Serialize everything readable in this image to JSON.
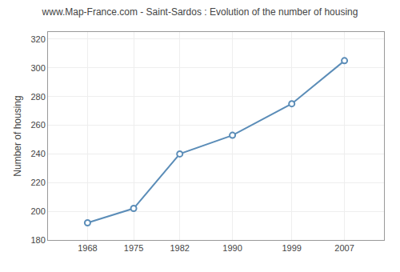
{
  "chart_data": {
    "type": "line",
    "title": "www.Map-France.com - Saint-Sardos : Evolution of the number of housing",
    "ylabel": "Number of housing",
    "x": [
      1968,
      1975,
      1982,
      1990,
      1999,
      2007
    ],
    "values": [
      192,
      202,
      240,
      253,
      275,
      305
    ],
    "xlim": [
      1962,
      2013
    ],
    "xticks": [
      1968,
      1975,
      1982,
      1990,
      1999,
      2007
    ],
    "ylim": [
      180,
      325
    ],
    "yticks": [
      180,
      200,
      220,
      240,
      260,
      280,
      300,
      320
    ],
    "grid": true,
    "color": "#5b8db8",
    "marker": "circle"
  }
}
